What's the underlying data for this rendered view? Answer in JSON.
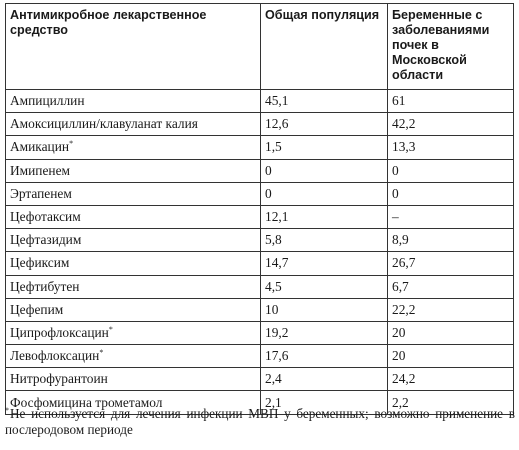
{
  "table": {
    "headers": [
      "Антимикробное лекарственное средство",
      "Общая популяция",
      "Беременные с заболеваниями почек в Московской области"
    ],
    "footnote_marker": "*",
    "rows": [
      {
        "drug": "Ампициллин",
        "marked": false,
        "general": "45,1",
        "pregnant": "61"
      },
      {
        "drug": "Амоксициллин/клавуланат калия",
        "marked": false,
        "general": "12,6",
        "pregnant": "42,2"
      },
      {
        "drug": "Амикацин",
        "marked": true,
        "general": "1,5",
        "pregnant": "13,3"
      },
      {
        "drug": "Имипенем",
        "marked": false,
        "general": "0",
        "pregnant": "0"
      },
      {
        "drug": "Эртапенем",
        "marked": false,
        "general": "0",
        "pregnant": "0"
      },
      {
        "drug": "Цефотаксим",
        "marked": false,
        "general": "12,1",
        "pregnant": "–"
      },
      {
        "drug": "Цефтазидим",
        "marked": false,
        "general": "5,8",
        "pregnant": "8,9"
      },
      {
        "drug": "Цефиксим",
        "marked": false,
        "general": "14,7",
        "pregnant": "26,7"
      },
      {
        "drug": "Цефтибутен",
        "marked": false,
        "general": "4,5",
        "pregnant": "6,7"
      },
      {
        "drug": "Цефепим",
        "marked": false,
        "general": "10",
        "pregnant": "22,2"
      },
      {
        "drug": "Ципрофлоксацин",
        "marked": true,
        "general": "19,2",
        "pregnant": "20"
      },
      {
        "drug": "Левофлоксацин",
        "marked": true,
        "general": "17,6",
        "pregnant": "20"
      },
      {
        "drug": "Нитрофурантоин",
        "marked": false,
        "general": "2,4",
        "pregnant": "24,2"
      },
      {
        "drug": "Фосфомицина трометамол",
        "marked": false,
        "general": "2,1",
        "pregnant": "2,2"
      }
    ]
  },
  "footnote": {
    "marker": "*",
    "text": "Не используется для лечения инфекции МВП у беременных; возможно применение в послеродовом периоде"
  }
}
